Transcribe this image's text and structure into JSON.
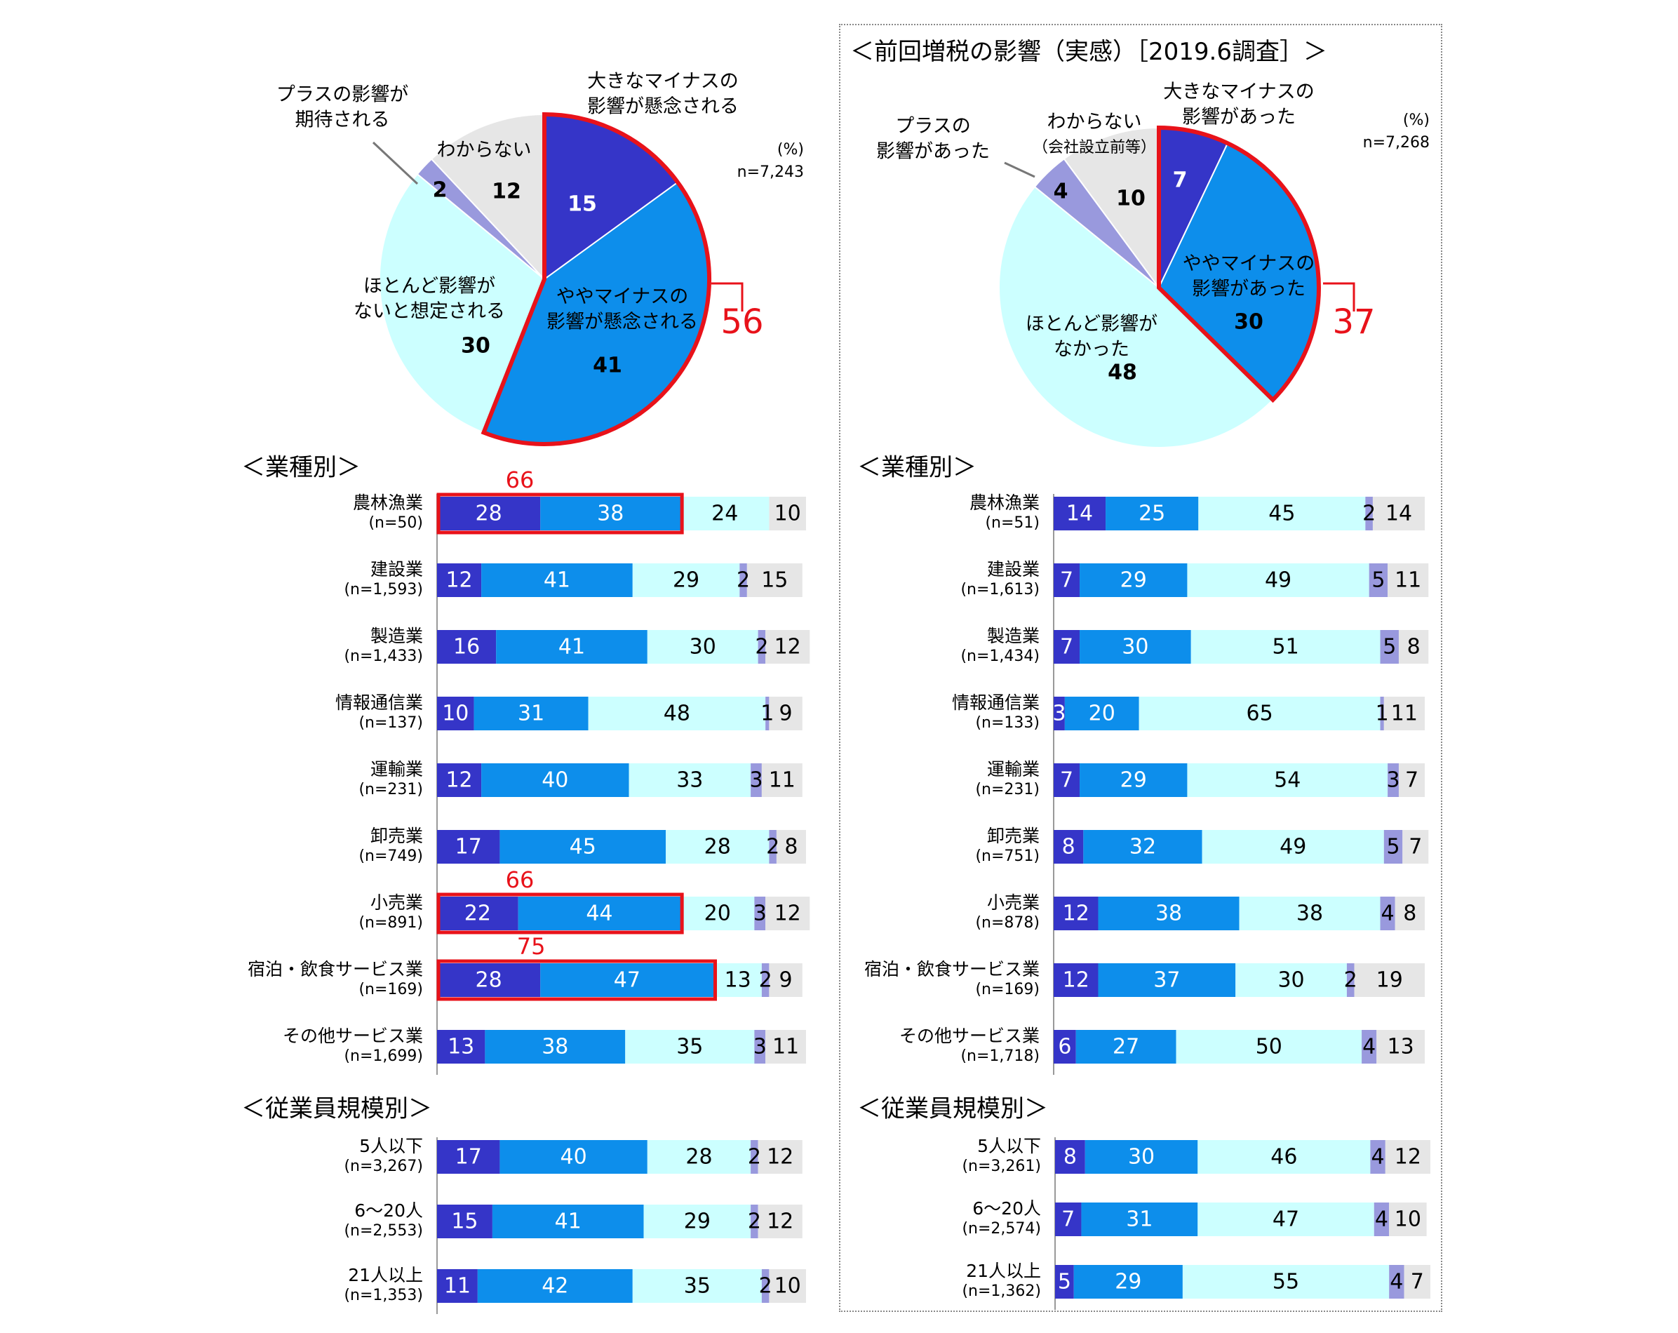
{
  "colors": {
    "big_minus": "#3535C8",
    "small_minus": "#0D8EEB",
    "none": "#CCFFFF",
    "plus": "#9999DD",
    "unknown": "#E6E6E6",
    "highlight": "#E8121A"
  },
  "chart_data": [
    {
      "type": "pie",
      "panel": "left",
      "note": "(%)",
      "n": "n=7,243",
      "slices": [
        {
          "label": "大きなマイナスの影響が懸念される",
          "value": 15
        },
        {
          "label": "ややマイナスの影響が懸念される",
          "value": 41
        },
        {
          "label": "ほとんど影響がないと想定される",
          "value": 30
        },
        {
          "label": "プラスの影響が期待される",
          "value": 2
        },
        {
          "label": "わからない",
          "value": 12
        }
      ],
      "highlight_total": 56
    },
    {
      "type": "pie",
      "panel": "right",
      "title": "＜前回増税の影響（実感）［2019.6調査］＞",
      "note": "(%)",
      "n": "n=7,268",
      "slices": [
        {
          "label": "大きなマイナスの影響があった",
          "value": 7
        },
        {
          "label": "ややマイナスの影響があった",
          "value": 30
        },
        {
          "label": "ほとんど影響がなかった",
          "value": 48
        },
        {
          "label": "プラスの影響があった",
          "value": 4
        },
        {
          "label": "わからない（会社設立前等）",
          "value": 10
        }
      ],
      "highlight_total": 37
    },
    {
      "type": "bar",
      "orientation": "horizontal-stacked",
      "panel": "left",
      "section": "＜業種別＞",
      "categories": [
        {
          "name": "農林漁業",
          "n": "(n=50)",
          "values": [
            28,
            38,
            24,
            0,
            10
          ],
          "highlight": 66
        },
        {
          "name": "建設業",
          "n": "(n=1,593)",
          "values": [
            12,
            41,
            29,
            2,
            15
          ]
        },
        {
          "name": "製造業",
          "n": "(n=1,433)",
          "values": [
            16,
            41,
            30,
            2,
            12
          ]
        },
        {
          "name": "情報通信業",
          "n": "(n=137)",
          "values": [
            10,
            31,
            48,
            1,
            9
          ]
        },
        {
          "name": "運輸業",
          "n": "(n=231)",
          "values": [
            12,
            40,
            33,
            3,
            11
          ]
        },
        {
          "name": "卸売業",
          "n": "(n=749)",
          "values": [
            17,
            45,
            28,
            2,
            8
          ]
        },
        {
          "name": "小売業",
          "n": "(n=891)",
          "values": [
            22,
            44,
            20,
            3,
            12
          ],
          "highlight": 66
        },
        {
          "name": "宿泊・飲食サービス業",
          "n": "(n=169)",
          "values": [
            28,
            47,
            13,
            2,
            9
          ],
          "highlight": 75
        },
        {
          "name": "その他サービス業",
          "n": "(n=1,699)",
          "values": [
            13,
            38,
            35,
            3,
            11
          ]
        }
      ]
    },
    {
      "type": "bar",
      "orientation": "horizontal-stacked",
      "panel": "right",
      "section": "＜業種別＞",
      "categories": [
        {
          "name": "農林漁業",
          "n": "(n=51)",
          "values": [
            14,
            25,
            45,
            2,
            14
          ]
        },
        {
          "name": "建設業",
          "n": "(n=1,613)",
          "values": [
            7,
            29,
            49,
            5,
            11
          ]
        },
        {
          "name": "製造業",
          "n": "(n=1,434)",
          "values": [
            7,
            30,
            51,
            5,
            8
          ]
        },
        {
          "name": "情報通信業",
          "n": "(n=133)",
          "values": [
            3,
            20,
            65,
            1,
            11
          ]
        },
        {
          "name": "運輸業",
          "n": "(n=231)",
          "values": [
            7,
            29,
            54,
            3,
            7
          ]
        },
        {
          "name": "卸売業",
          "n": "(n=751)",
          "values": [
            8,
            32,
            49,
            5,
            7
          ]
        },
        {
          "name": "小売業",
          "n": "(n=878)",
          "values": [
            12,
            38,
            38,
            4,
            8
          ]
        },
        {
          "name": "宿泊・飲食サービス業",
          "n": "(n=169)",
          "values": [
            12,
            37,
            30,
            2,
            19
          ]
        },
        {
          "name": "その他サービス業",
          "n": "(n=1,718)",
          "values": [
            6,
            27,
            50,
            4,
            13
          ]
        }
      ]
    },
    {
      "type": "bar",
      "orientation": "horizontal-stacked",
      "panel": "left",
      "section": "＜従業員規模別＞",
      "categories": [
        {
          "name": "5人以下",
          "n": "(n=3,267)",
          "values": [
            17,
            40,
            28,
            2,
            12
          ]
        },
        {
          "name": "6～20人",
          "n": "(n=2,553)",
          "values": [
            15,
            41,
            29,
            2,
            12
          ]
        },
        {
          "name": "21人以上",
          "n": "(n=1,353)",
          "values": [
            11,
            42,
            35,
            2,
            10
          ]
        }
      ]
    },
    {
      "type": "bar",
      "orientation": "horizontal-stacked",
      "panel": "right",
      "section": "＜従業員規模別＞",
      "categories": [
        {
          "name": "5人以下",
          "n": "(n=3,261)",
          "values": [
            8,
            30,
            46,
            4,
            12
          ]
        },
        {
          "name": "6～20人",
          "n": "(n=2,574)",
          "values": [
            7,
            31,
            47,
            4,
            10
          ]
        },
        {
          "name": "21人以上",
          "n": "(n=1,362)",
          "values": [
            5,
            29,
            55,
            4,
            7
          ]
        }
      ]
    }
  ],
  "pie_labels": {
    "left": {
      "big_minus": [
        "大きなマイナスの",
        "影響が懸念される"
      ],
      "small_minus": [
        "ややマイナスの",
        "影響が懸念される"
      ],
      "none": [
        "ほとんど影響が",
        "ないと想定される"
      ],
      "plus": [
        "プラスの影響が",
        "期待される"
      ],
      "unknown": [
        "わからない"
      ]
    },
    "right": {
      "big_minus": [
        "大きなマイナスの",
        "影響があった"
      ],
      "small_minus": [
        "ややマイナスの",
        "影響があった"
      ],
      "none": [
        "ほとんど影響が",
        "なかった"
      ],
      "plus": [
        "プラスの",
        "影響があった"
      ],
      "unknown": [
        "わからない",
        "（会社設立前等）"
      ]
    }
  }
}
